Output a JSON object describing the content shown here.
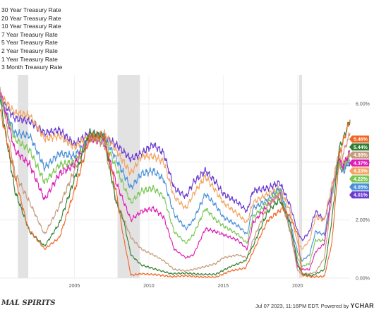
{
  "legend": {
    "items": [
      "30 Year Treasury Rate",
      "20 Year Treasury Rate",
      "10 Year Treasury Rate",
      "7 Year Treasury Rate",
      "5 Year Treasury Rate",
      "2 Year Treasury Rate",
      "1 Year Treasury Rate",
      "3 Month Treasury Rate"
    ]
  },
  "footer": {
    "brand_left": "MAL SPIRITS",
    "timestamp": "Jul 07 2023, 11:16PM EDT.",
    "powered_by": "Powered by",
    "logo_text": "YCHAR"
  },
  "chart_data": {
    "type": "line",
    "x_ticks": [
      "2005",
      "2010",
      "2015",
      "2020"
    ],
    "y_ticks": [
      "6.00%",
      "4.00%",
      "2.00%",
      "0.00%"
    ],
    "x_range": [
      2000.0,
      2023.52
    ],
    "ylim": [
      0,
      7.0
    ],
    "recessions": [
      [
        2001.2,
        2001.9
      ],
      [
        2007.9,
        2009.4
      ],
      [
        2020.1,
        2020.3
      ]
    ],
    "grid": true,
    "legend_placement": "top-left",
    "series": [
      {
        "name": "30 Year Treasury Rate",
        "color": "#6a3bd1",
        "last": "4.01%",
        "x": [
          2000.0,
          2001.0,
          2002.0,
          2003.0,
          2004.0,
          2005.0,
          2006.0,
          2007.0,
          2007.8,
          2008.8,
          2009.5,
          2010.3,
          2011.0,
          2011.7,
          2012.5,
          2013.0,
          2013.8,
          2014.5,
          2015.0,
          2016.0,
          2016.6,
          2017.0,
          2018.0,
          2018.8,
          2019.5,
          2020.0,
          2020.3,
          2020.8,
          2021.2,
          2021.8,
          2022.3,
          2022.8,
          2023.0,
          2023.52
        ],
        "y": [
          6.2,
          5.5,
          5.4,
          5.0,
          5.1,
          4.6,
          5.0,
          4.9,
          4.6,
          4.1,
          4.3,
          4.6,
          4.3,
          3.1,
          2.8,
          3.3,
          3.7,
          3.3,
          2.9,
          2.6,
          2.3,
          3.0,
          3.1,
          3.3,
          2.5,
          1.6,
          1.3,
          1.6,
          2.3,
          2.0,
          3.0,
          4.1,
          3.8,
          4.01
        ]
      },
      {
        "name": "20 Year Treasury Rate",
        "color": "#f4a460",
        "last": "4.23%",
        "x": [
          2000.0,
          2001.0,
          2002.0,
          2003.0,
          2004.0,
          2005.0,
          2006.0,
          2007.0,
          2007.8,
          2008.8,
          2009.5,
          2010.3,
          2011.0,
          2011.7,
          2012.5,
          2013.0,
          2013.8,
          2014.5,
          2015.0,
          2016.0,
          2016.6,
          2017.0,
          2018.0,
          2018.8,
          2019.5,
          2020.0,
          2020.3,
          2020.8,
          2021.2,
          2021.8,
          2022.3,
          2022.8,
          2023.0,
          2023.52
        ],
        "y": [
          6.3,
          5.7,
          5.6,
          4.8,
          4.9,
          4.5,
          4.9,
          5.0,
          4.4,
          3.6,
          4.2,
          4.2,
          4.0,
          2.8,
          2.4,
          2.9,
          3.5,
          3.0,
          2.6,
          2.2,
          1.9,
          2.6,
          2.9,
          3.1,
          2.3,
          1.2,
          1.0,
          1.3,
          2.1,
          2.0,
          3.2,
          4.3,
          3.9,
          4.23
        ]
      },
      {
        "name": "10 Year Treasury Rate",
        "color": "#4a90d9",
        "last": "4.05%",
        "x": [
          2000.0,
          2001.0,
          2002.0,
          2003.0,
          2004.0,
          2005.0,
          2006.0,
          2007.0,
          2007.8,
          2008.8,
          2009.5,
          2010.3,
          2011.0,
          2011.7,
          2012.5,
          2013.0,
          2013.8,
          2014.5,
          2015.0,
          2016.0,
          2016.6,
          2017.0,
          2018.0,
          2018.8,
          2019.5,
          2020.0,
          2020.3,
          2020.8,
          2021.2,
          2021.8,
          2022.3,
          2022.8,
          2023.0,
          2023.52
        ],
        "y": [
          6.2,
          5.0,
          4.9,
          3.8,
          4.3,
          4.2,
          4.8,
          4.9,
          4.1,
          3.1,
          3.6,
          3.7,
          3.4,
          2.2,
          1.7,
          2.0,
          2.9,
          2.5,
          2.1,
          1.8,
          1.5,
          2.4,
          2.7,
          3.1,
          1.9,
          0.9,
          0.6,
          0.8,
          1.6,
          1.5,
          2.9,
          4.0,
          3.6,
          4.05
        ]
      },
      {
        "name": "7 Year Treasury Rate",
        "color": "#79c753",
        "last": "4.22%",
        "x": [
          2000.0,
          2001.0,
          2002.0,
          2003.0,
          2004.0,
          2005.0,
          2006.0,
          2007.0,
          2007.8,
          2008.8,
          2009.5,
          2010.3,
          2011.0,
          2011.7,
          2012.5,
          2013.0,
          2013.8,
          2014.5,
          2015.0,
          2016.0,
          2016.6,
          2017.0,
          2018.0,
          2018.8,
          2019.5,
          2020.0,
          2020.3,
          2020.8,
          2021.2,
          2021.8,
          2022.3,
          2022.8,
          2023.0,
          2023.52
        ],
        "y": [
          6.2,
          4.8,
          4.4,
          3.3,
          3.9,
          4.0,
          4.8,
          4.8,
          3.8,
          2.6,
          3.0,
          3.1,
          2.8,
          1.6,
          1.2,
          1.5,
          2.4,
          2.0,
          1.8,
          1.5,
          1.2,
          2.1,
          2.6,
          3.0,
          1.7,
          0.7,
          0.4,
          0.5,
          1.3,
          1.3,
          2.9,
          4.0,
          3.7,
          4.22
        ]
      },
      {
        "name": "5 Year Treasury Rate",
        "color": "#e01cb6",
        "last": "4.37%",
        "x": [
          2000.0,
          2001.0,
          2002.0,
          2003.0,
          2004.0,
          2005.0,
          2006.0,
          2007.0,
          2007.8,
          2008.8,
          2009.5,
          2010.3,
          2011.0,
          2011.7,
          2012.5,
          2013.0,
          2013.8,
          2014.5,
          2015.0,
          2016.0,
          2016.6,
          2017.0,
          2018.0,
          2018.8,
          2019.5,
          2020.0,
          2020.3,
          2020.8,
          2021.2,
          2021.8,
          2022.3,
          2022.8,
          2023.0,
          2023.52
        ],
        "y": [
          6.5,
          4.4,
          3.9,
          2.7,
          3.6,
          3.9,
          4.8,
          4.7,
          3.3,
          2.0,
          2.3,
          2.4,
          2.1,
          1.0,
          0.7,
          0.8,
          1.7,
          1.6,
          1.5,
          1.3,
          1.0,
          1.9,
          2.5,
          2.9,
          1.6,
          0.4,
          0.3,
          0.3,
          0.9,
          1.2,
          2.9,
          4.2,
          3.8,
          4.37
        ]
      },
      {
        "name": "2 Year Treasury Rate",
        "color": "#c49a7c",
        "last": "4.99%",
        "x": [
          2000.0,
          2001.0,
          2002.0,
          2003.0,
          2004.0,
          2005.0,
          2006.0,
          2007.0,
          2007.8,
          2008.8,
          2009.5,
          2010.3,
          2011.0,
          2011.7,
          2012.5,
          2013.0,
          2013.8,
          2014.5,
          2015.0,
          2016.0,
          2016.6,
          2017.0,
          2018.0,
          2018.8,
          2019.5,
          2020.0,
          2020.3,
          2020.8,
          2021.2,
          2021.8,
          2022.3,
          2022.8,
          2023.0,
          2023.52
        ],
        "y": [
          6.6,
          3.6,
          2.6,
          1.5,
          2.5,
          3.7,
          4.9,
          4.6,
          2.7,
          1.4,
          1.0,
          0.8,
          0.6,
          0.3,
          0.25,
          0.3,
          0.4,
          0.5,
          0.7,
          0.8,
          0.7,
          1.3,
          2.5,
          2.9,
          1.6,
          0.25,
          0.15,
          0.15,
          0.2,
          0.7,
          2.8,
          4.5,
          4.2,
          4.99
        ]
      },
      {
        "name": "1 Year Treasury Rate",
        "color": "#2e7d32",
        "last": "5.44%",
        "x": [
          2000.0,
          2001.0,
          2002.0,
          2003.0,
          2004.0,
          2005.0,
          2006.0,
          2007.0,
          2007.8,
          2008.3,
          2008.8,
          2009.5,
          2010.5,
          2011.5,
          2012.5,
          2013.5,
          2014.5,
          2015.5,
          2016.5,
          2017.0,
          2018.0,
          2018.8,
          2019.5,
          2020.0,
          2020.3,
          2021.0,
          2021.8,
          2022.3,
          2022.8,
          2023.0,
          2023.52
        ],
        "y": [
          6.2,
          3.0,
          1.6,
          1.1,
          1.9,
          3.4,
          5.0,
          4.9,
          2.6,
          2.0,
          0.8,
          0.45,
          0.3,
          0.15,
          0.17,
          0.13,
          0.13,
          0.4,
          0.6,
          1.1,
          2.3,
          2.7,
          1.9,
          0.5,
          0.15,
          0.08,
          0.3,
          2.0,
          4.5,
          4.7,
          5.44
        ]
      },
      {
        "name": "3 Month Treasury Rate",
        "color": "#f26522",
        "last": "5.46%",
        "x": [
          2000.0,
          2001.0,
          2001.9,
          2003.0,
          2004.0,
          2005.0,
          2006.0,
          2007.0,
          2007.8,
          2008.3,
          2008.8,
          2009.5,
          2010.5,
          2011.5,
          2012.5,
          2013.5,
          2014.5,
          2015.5,
          2016.5,
          2017.0,
          2018.0,
          2019.0,
          2019.5,
          2020.0,
          2020.3,
          2021.0,
          2021.8,
          2022.3,
          2022.8,
          2023.0,
          2023.52
        ],
        "y": [
          5.8,
          3.5,
          1.7,
          1.0,
          1.4,
          3.0,
          4.8,
          4.9,
          3.0,
          1.4,
          0.1,
          0.15,
          0.12,
          0.05,
          0.08,
          0.04,
          0.03,
          0.25,
          0.35,
          0.9,
          2.0,
          2.4,
          2.1,
          1.5,
          0.1,
          0.04,
          0.06,
          1.2,
          4.2,
          4.6,
          5.46
        ]
      }
    ]
  }
}
